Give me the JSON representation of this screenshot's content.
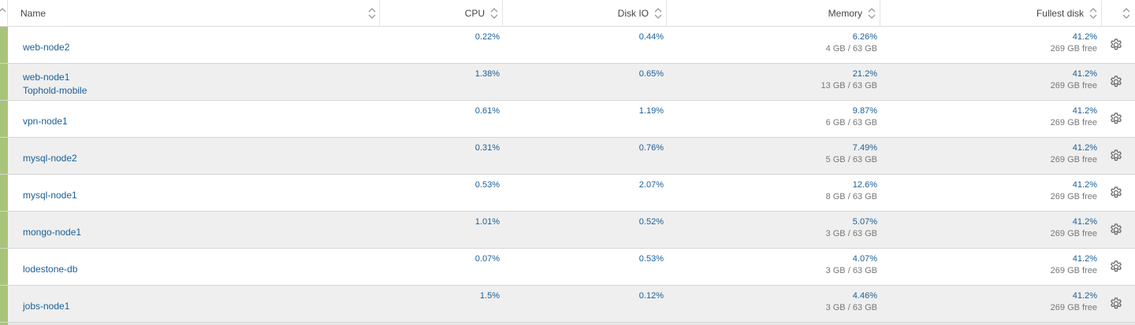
{
  "header": {
    "name": "Name",
    "cpu": "CPU",
    "disk_io": "Disk IO",
    "memory": "Memory",
    "fullest_disk": "Fullest disk"
  },
  "colors": {
    "status_ok": "#a8c47a",
    "link": "#1a5e96"
  },
  "rows": [
    {
      "name": "web-node2",
      "subname": "",
      "cpu": "0.22%",
      "disk_io": "0.44%",
      "memory": "6.26%",
      "memory_detail": "4 GB / 63 GB",
      "disk": "41.2%",
      "disk_detail": "269 GB free"
    },
    {
      "name": "web-node1",
      "subname": "Tophold-mobile",
      "cpu": "1.38%",
      "disk_io": "0.65%",
      "memory": "21.2%",
      "memory_detail": "13 GB / 63 GB",
      "disk": "41.2%",
      "disk_detail": "269 GB free"
    },
    {
      "name": "vpn-node1",
      "subname": "",
      "cpu": "0.61%",
      "disk_io": "1.19%",
      "memory": "9.87%",
      "memory_detail": "6 GB / 63 GB",
      "disk": "41.2%",
      "disk_detail": "269 GB free"
    },
    {
      "name": "mysql-node2",
      "subname": "",
      "cpu": "0.31%",
      "disk_io": "0.76%",
      "memory": "7.49%",
      "memory_detail": "5 GB / 63 GB",
      "disk": "41.2%",
      "disk_detail": "269 GB free"
    },
    {
      "name": "mysql-node1",
      "subname": "",
      "cpu": "0.53%",
      "disk_io": "2.07%",
      "memory": "12.6%",
      "memory_detail": "8 GB / 63 GB",
      "disk": "41.2%",
      "disk_detail": "269 GB free"
    },
    {
      "name": "mongo-node1",
      "subname": "",
      "cpu": "1.01%",
      "disk_io": "0.52%",
      "memory": "5.07%",
      "memory_detail": "3 GB / 63 GB",
      "disk": "41.2%",
      "disk_detail": "269 GB free"
    },
    {
      "name": "lodestone-db",
      "subname": "",
      "cpu": "0.07%",
      "disk_io": "0.53%",
      "memory": "4.07%",
      "memory_detail": "3 GB / 63 GB",
      "disk": "41.2%",
      "disk_detail": "269 GB free"
    },
    {
      "name": "jobs-node1",
      "subname": "",
      "cpu": "1.5%",
      "disk_io": "0.12%",
      "memory": "4.46%",
      "memory_detail": "3 GB / 63 GB",
      "disk": "41.2%",
      "disk_detail": "269 GB free"
    }
  ]
}
